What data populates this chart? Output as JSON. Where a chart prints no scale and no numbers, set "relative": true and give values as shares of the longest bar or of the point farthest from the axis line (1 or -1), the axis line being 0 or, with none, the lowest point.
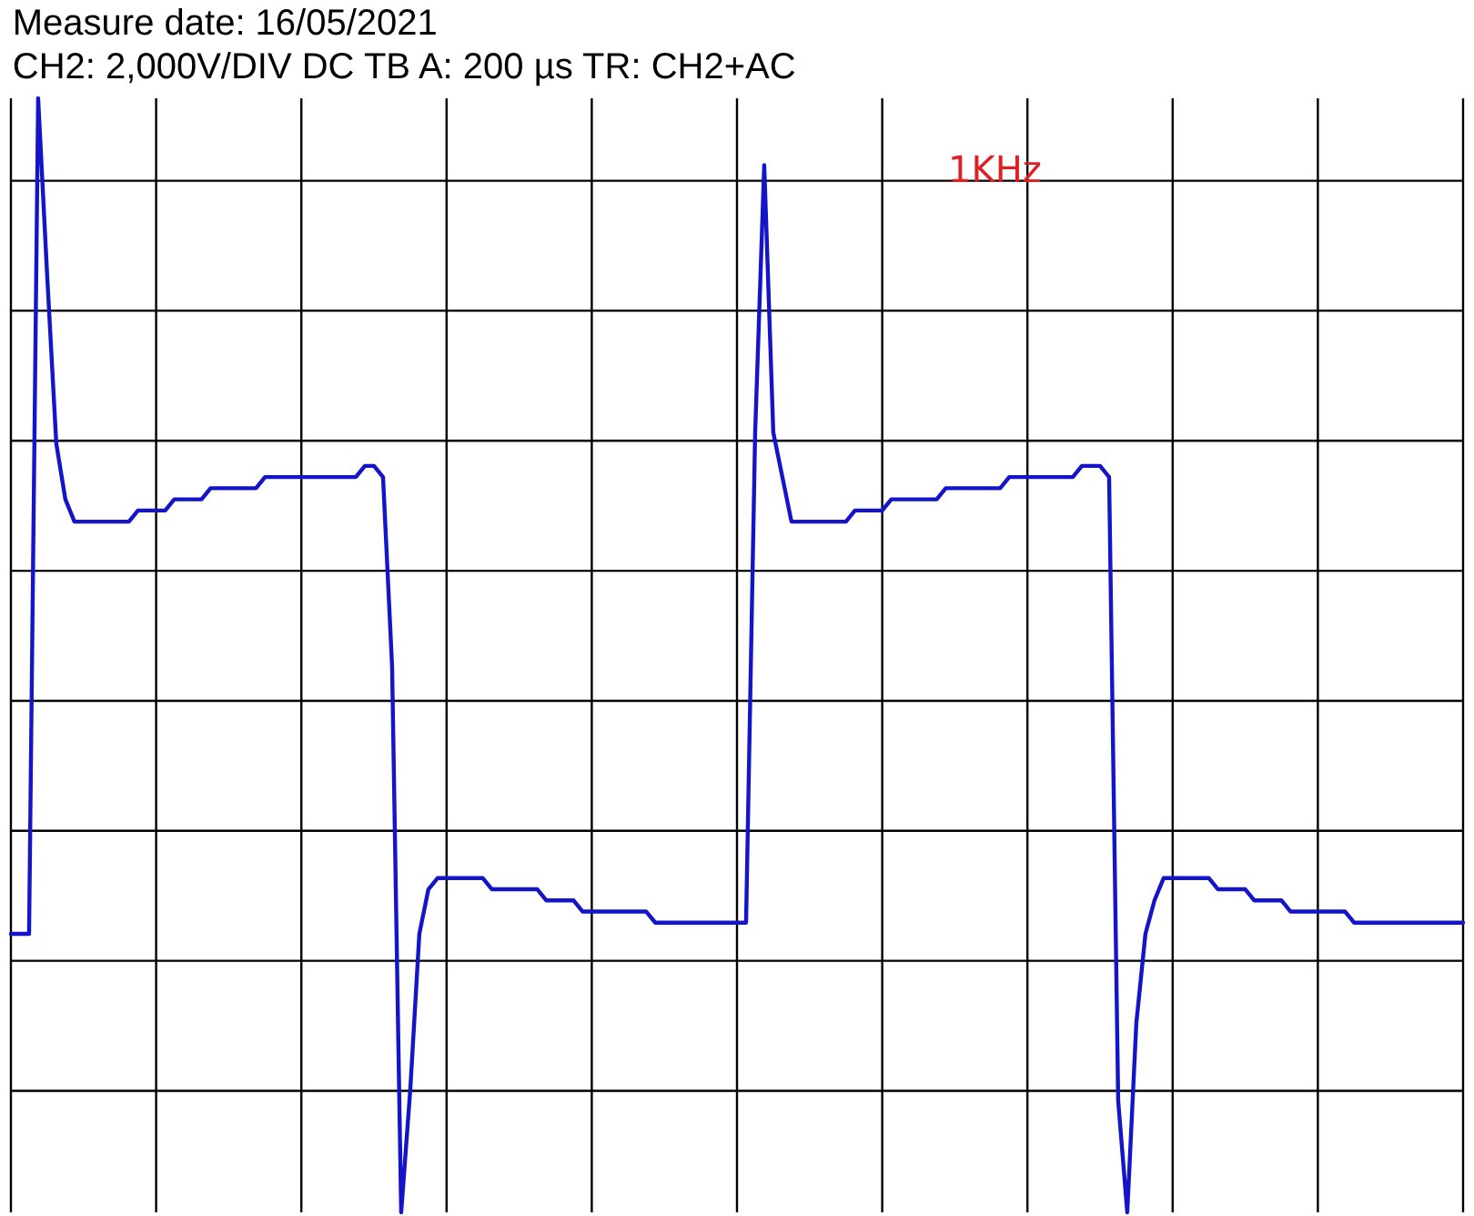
{
  "chart_data": {
    "type": "line",
    "title": "Measure date: 16/05/2021",
    "subtitle": "CH2: 2,000V/DIV DC   TB A: 200 µs  TR: CH2+AC",
    "annotations": [
      "1KHz"
    ],
    "relative": true,
    "categories": [
      null,
      null,
      null,
      null,
      null,
      null,
      null,
      null,
      null,
      null,
      null,
      null,
      null,
      null,
      null,
      null,
      null,
      null,
      null,
      null,
      null,
      null,
      null,
      null,
      null,
      null,
      null,
      null,
      null,
      null,
      null,
      null,
      null,
      null,
      null,
      null,
      null,
      null,
      null,
      null,
      null,
      null,
      null,
      null,
      null,
      null,
      null,
      null,
      null,
      null,
      null,
      null,
      null,
      null,
      null,
      null,
      null,
      null,
      null,
      null,
      null,
      null,
      null,
      null,
      null,
      null,
      null,
      null,
      null,
      null,
      null,
      null,
      null,
      null,
      null,
      null,
      null,
      null,
      null,
      null,
      null,
      null,
      null,
      null,
      null,
      null,
      null,
      null,
      null,
      null,
      null,
      null,
      null,
      null,
      null,
      null,
      null,
      null,
      null,
      null,
      null,
      null,
      null,
      null,
      null,
      null,
      null,
      null,
      null,
      null,
      null,
      null,
      null,
      null,
      null,
      null,
      null,
      null,
      null,
      null,
      null,
      null,
      null,
      null,
      null,
      null,
      null,
      null,
      null,
      null,
      null,
      null,
      null,
      null,
      null,
      null,
      null,
      null,
      null,
      null,
      null,
      null,
      null,
      null,
      null,
      null,
      null,
      null,
      null,
      null,
      null,
      null,
      null,
      null,
      null,
      null,
      null,
      null,
      null,
      null,
      null
    ],
    "series": [
      {
        "color": "#1414c8",
        "values": [
          0.25,
          0.25,
          0.25,
          1.0,
          0.84,
          0.69,
          0.64,
          0.62,
          0.62,
          0.62,
          0.62,
          0.62,
          0.62,
          0.62,
          0.63,
          0.63,
          0.63,
          0.63,
          0.64,
          0.64,
          0.64,
          0.64,
          0.65,
          0.65,
          0.65,
          0.65,
          0.65,
          0.65,
          0.66,
          0.66,
          0.66,
          0.66,
          0.66,
          0.66,
          0.66,
          0.66,
          0.66,
          0.66,
          0.66,
          0.67,
          0.67,
          0.66,
          0.49,
          0.0,
          0.11,
          0.25,
          0.29,
          0.3,
          0.3,
          0.3,
          0.3,
          0.3,
          0.3,
          0.29,
          0.29,
          0.29,
          0.29,
          0.29,
          0.29,
          0.28,
          0.28,
          0.28,
          0.28,
          0.27,
          0.27,
          0.27,
          0.27,
          0.27,
          0.27,
          0.27,
          0.27,
          0.26,
          0.26,
          0.26,
          0.26,
          0.26,
          0.26,
          0.26,
          0.26,
          0.26,
          0.26,
          0.26,
          0.7,
          0.94,
          0.7,
          0.66,
          0.62,
          0.62,
          0.62,
          0.62,
          0.62,
          0.62,
          0.62,
          0.63,
          0.63,
          0.63,
          0.63,
          0.64,
          0.64,
          0.64,
          0.64,
          0.64,
          0.64,
          0.65,
          0.65,
          0.65,
          0.65,
          0.65,
          0.65,
          0.65,
          0.66,
          0.66,
          0.66,
          0.66,
          0.66,
          0.66,
          0.66,
          0.66,
          0.67,
          0.67,
          0.67,
          0.66,
          0.1,
          0.0,
          0.17,
          0.25,
          0.28,
          0.3,
          0.3,
          0.3,
          0.3,
          0.3,
          0.3,
          0.29,
          0.29,
          0.29,
          0.29,
          0.28,
          0.28,
          0.28,
          0.28,
          0.27,
          0.27,
          0.27,
          0.27,
          0.27,
          0.27,
          0.27,
          0.26,
          0.26,
          0.26,
          0.26,
          0.26,
          0.26,
          0.26,
          0.26,
          0.26,
          0.26,
          0.26,
          0.26,
          0.26
        ]
      }
    ],
    "grid": true,
    "marker": "none",
    "line_style": "solid"
  }
}
